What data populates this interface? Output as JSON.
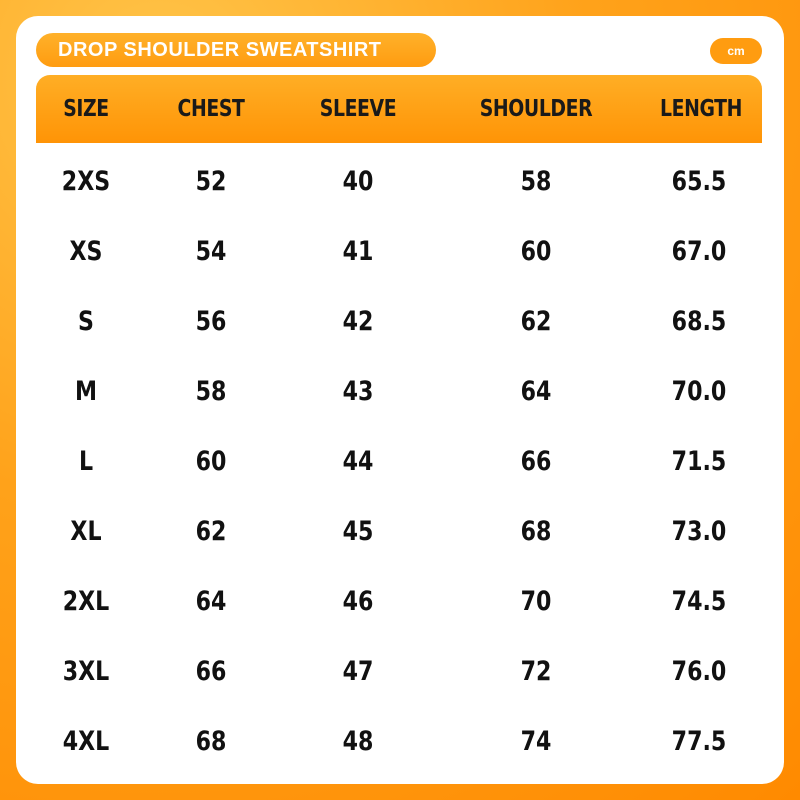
{
  "title": "DROP SHOULDER SWEATSHIRT",
  "unit": "cm",
  "colors": {
    "accent": "#ff9c10",
    "background": "#ffa21a",
    "card": "#ffffff",
    "text": "#111111"
  },
  "table": {
    "headers": [
      "SIZE",
      "CHEST",
      "SLEEVE",
      "SHOULDER",
      "LENGTH"
    ],
    "rows": [
      [
        "2XS",
        "52",
        "40",
        "58",
        "65.5"
      ],
      [
        "XS",
        "54",
        "41",
        "60",
        "67.0"
      ],
      [
        "S",
        "56",
        "42",
        "62",
        "68.5"
      ],
      [
        "M",
        "58",
        "43",
        "64",
        "70.0"
      ],
      [
        "L",
        "60",
        "44",
        "66",
        "71.5"
      ],
      [
        "XL",
        "62",
        "45",
        "68",
        "73.0"
      ],
      [
        "2XL",
        "64",
        "46",
        "70",
        "74.5"
      ],
      [
        "3XL",
        "66",
        "47",
        "72",
        "76.0"
      ],
      [
        "4XL",
        "68",
        "48",
        "74",
        "77.5"
      ]
    ]
  }
}
